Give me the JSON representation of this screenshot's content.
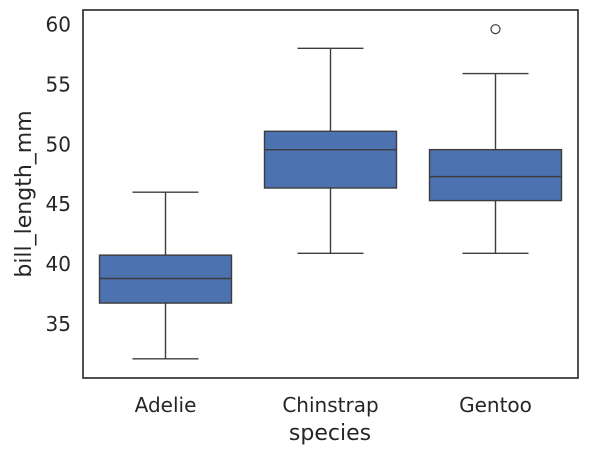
{
  "chart_data": {
    "type": "box",
    "xlabel": "species",
    "ylabel": "bill_length_mm",
    "categories": [
      "Adelie",
      "Chinstrap",
      "Gentoo"
    ],
    "ylim": [
      30.5,
      61.2
    ],
    "yticks": [
      35,
      40,
      45,
      50,
      55,
      60
    ],
    "ytick_labels": [
      "35",
      "40",
      "45",
      "50",
      "55",
      "60"
    ],
    "grid": false,
    "boxes": [
      {
        "category": "Adelie",
        "whisker_low": 32.1,
        "q1": 36.75,
        "median": 38.8,
        "q3": 40.75,
        "whisker_high": 46.0,
        "outliers": []
      },
      {
        "category": "Chinstrap",
        "whisker_low": 40.9,
        "q1": 46.35,
        "median": 49.55,
        "q3": 51.08,
        "whisker_high": 58.0,
        "outliers": []
      },
      {
        "category": "Gentoo",
        "whisker_low": 40.9,
        "q1": 45.3,
        "median": 47.3,
        "q3": 49.55,
        "whisker_high": 55.9,
        "outliers": [
          59.6
        ]
      }
    ],
    "colors": {
      "box_fill": "#4c72b0",
      "line": "#3d3d3d",
      "axes": "#262626"
    }
  }
}
